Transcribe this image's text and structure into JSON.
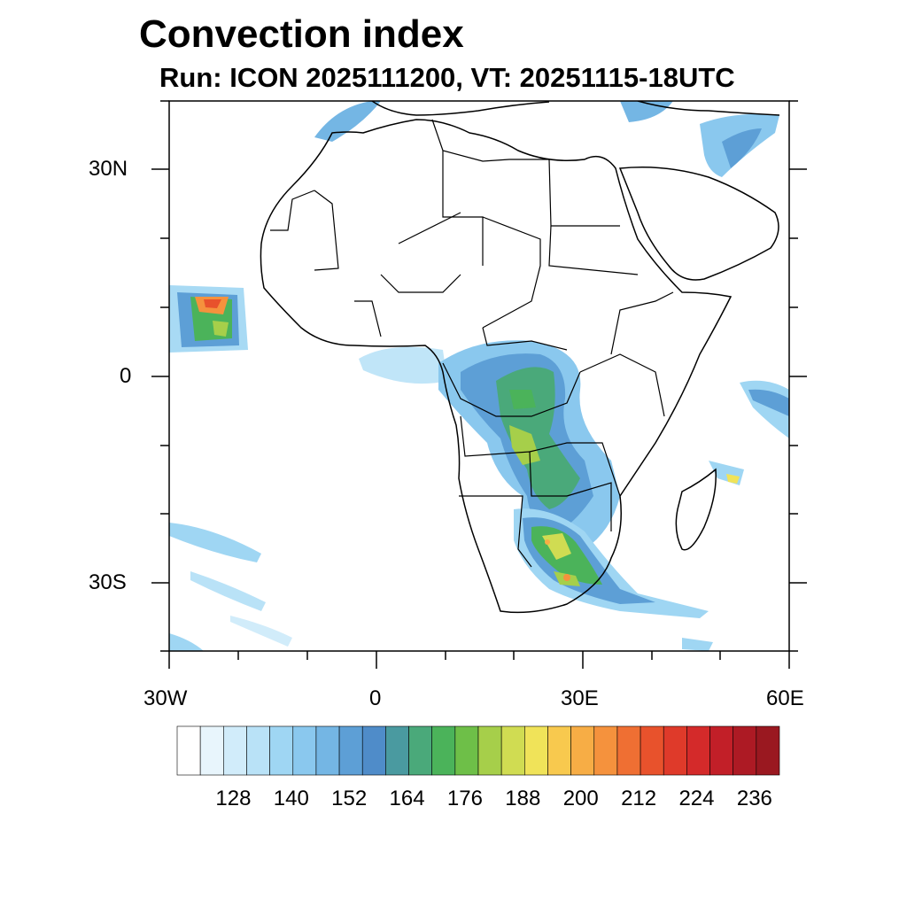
{
  "title": "Convection index",
  "subtitle": "Run: ICON 2025111200,  VT: 20251115-18UTC",
  "axes": {
    "lat_labels": [
      "30N",
      "0",
      "30S"
    ],
    "lon_labels": [
      "30W",
      "0",
      "30E",
      "60E"
    ],
    "lat_range": [
      -40,
      40
    ],
    "lon_range": [
      -30,
      60
    ]
  },
  "colorbar": {
    "tick_labels": [
      "128",
      "140",
      "152",
      "164",
      "176",
      "188",
      "200",
      "212",
      "224",
      "236"
    ],
    "colors": [
      "#ffffff",
      "#e8f5fc",
      "#d1ecfa",
      "#b9e2f7",
      "#9fd6f3",
      "#8ac8ee",
      "#74b6e4",
      "#5d9fd6",
      "#4f8cc9",
      "#4a9aa0",
      "#4aa97a",
      "#4bb35a",
      "#6ebf48",
      "#a6cf4a",
      "#d0dc52",
      "#f0e359",
      "#f8c94e",
      "#f7ad45",
      "#f5923d",
      "#ef6f33",
      "#e8522c",
      "#df3a2a",
      "#d42a2a",
      "#c21f28",
      "#ad1a24",
      "#9a1820"
    ]
  },
  "legend_icons": {
    "map": "africa-map-icon"
  }
}
